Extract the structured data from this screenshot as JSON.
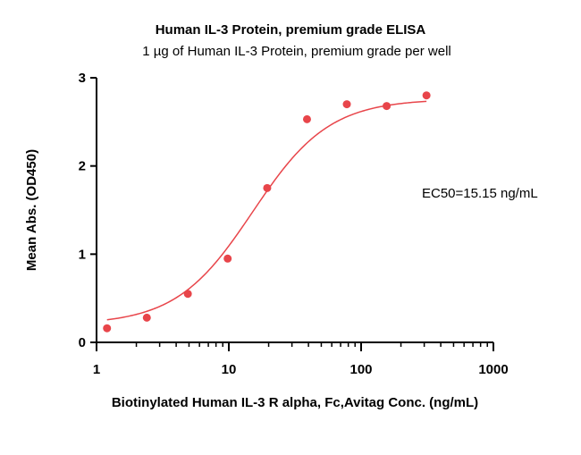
{
  "chart_data": {
    "type": "scatter",
    "title": "Human IL-3 Protein, premium grade ELISA",
    "subtitle": "1 µg of Human IL-3 Protein, premium grade per well",
    "xlabel": "Biotinylated Human IL-3 R alpha, Fc,Avitag Conc. (ng/mL)",
    "ylabel": "Mean Abs. (OD450)",
    "x_scale": "log",
    "xlim": [
      1,
      1000
    ],
    "ylim": [
      0,
      3
    ],
    "x_ticks": [
      "1",
      "10",
      "100",
      "1000"
    ],
    "y_ticks": [
      "0",
      "1",
      "2",
      "3"
    ],
    "grid": false,
    "legend": "none",
    "series": [
      {
        "x": [
          1.2,
          2.4,
          4.9,
          9.8,
          19.5,
          39,
          78,
          156,
          312
        ],
        "y": [
          0.16,
          0.28,
          0.55,
          0.95,
          1.75,
          2.53,
          2.7,
          2.68,
          2.8
        ],
        "color": "#e8454a"
      }
    ],
    "fit": {
      "type": "4PL",
      "bottom": 0.2,
      "top": 2.76,
      "ec50": 15.15,
      "hill": 1.5,
      "color": "#e8454a"
    },
    "annotation": "EC50=15.15 ng/mL"
  }
}
